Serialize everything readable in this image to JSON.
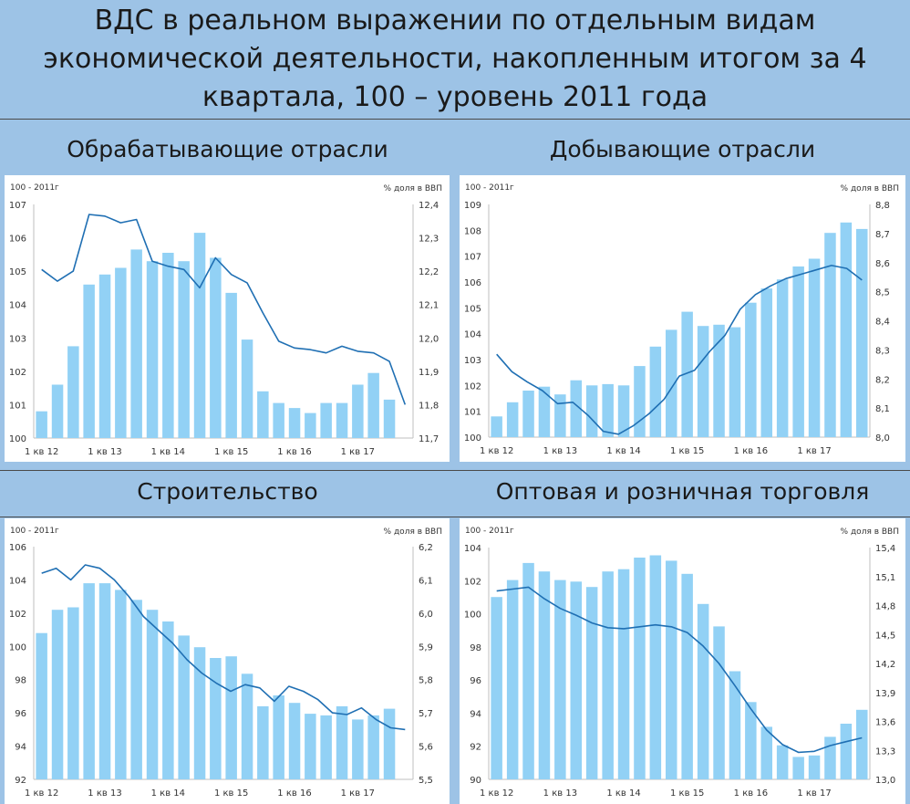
{
  "title": "ВДС в реальном выражении по отдельным видам экономической деятельности, накопленным итогом за 4 квартала, 100 – уровень 2011 года",
  "colors": {
    "bar": "#92d1f5",
    "line": "#1f6fb3",
    "background": "#9dc3e6",
    "panel": "#ffffff"
  },
  "chart_data": [
    {
      "type": "bar",
      "title": "Обрабатывающие отрасли",
      "left_axis_label": "100 - 2011г",
      "right_axis_label": "% доля в ВВП",
      "x_tick_labels": [
        "1 кв 12",
        "1 кв 13",
        "1 кв 14",
        "1 кв 15",
        "1 кв 16",
        "1 кв 17"
      ],
      "ylim": [
        100,
        107
      ],
      "y_ticks": [
        "100",
        "101",
        "102",
        "103",
        "104",
        "105",
        "106",
        "107"
      ],
      "y2lim": [
        11.7,
        12.4
      ],
      "y2_ticks": [
        "11,7",
        "11,8",
        "11,9",
        "12,0",
        "12,1",
        "12,2",
        "12,3",
        "12,4"
      ],
      "bars": [
        100.8,
        101.6,
        102.75,
        104.6,
        104.9,
        105.1,
        105.65,
        105.3,
        105.55,
        105.3,
        106.15,
        105.4,
        104.35,
        102.95,
        101.4,
        101.05,
        100.9,
        100.75,
        101.05,
        101.05,
        101.6,
        101.95,
        101.15
      ],
      "line": [
        12.205,
        12.17,
        12.2,
        12.37,
        12.365,
        12.345,
        12.355,
        12.23,
        12.215,
        12.205,
        12.15,
        12.24,
        12.19,
        12.165,
        12.075,
        11.99,
        11.97,
        11.965,
        11.955,
        11.975,
        11.96,
        11.955,
        11.93,
        11.8
      ]
    },
    {
      "type": "bar",
      "title": "Добывающие отрасли",
      "left_axis_label": "100 - 2011г",
      "right_axis_label": "% доля в ВВП",
      "x_tick_labels": [
        "1 кв 12",
        "1 кв 13",
        "1 кв 14",
        "1 кв 15",
        "1 кв 16",
        "1 кв 17"
      ],
      "ylim": [
        100,
        109
      ],
      "y_ticks": [
        "100",
        "101",
        "102",
        "103",
        "104",
        "105",
        "106",
        "107",
        "108",
        "109"
      ],
      "y2lim": [
        8.0,
        8.8
      ],
      "y2_ticks": [
        "8,0",
        "8,1",
        "8,2",
        "8,3",
        "8,4",
        "8,5",
        "8,6",
        "8,7",
        "8,8"
      ],
      "bars": [
        100.8,
        101.35,
        101.8,
        101.95,
        101.65,
        102.2,
        102.0,
        102.05,
        102.0,
        102.75,
        103.5,
        104.15,
        104.85,
        104.3,
        104.35,
        104.25,
        105.2,
        105.75,
        106.1,
        106.6,
        106.9,
        107.9,
        108.3,
        108.05
      ],
      "line": [
        8.285,
        8.225,
        8.19,
        8.16,
        8.115,
        8.12,
        8.075,
        8.02,
        8.01,
        8.04,
        8.08,
        8.13,
        8.21,
        8.23,
        8.295,
        8.35,
        8.44,
        8.49,
        8.52,
        8.545,
        8.56,
        8.575,
        8.59,
        8.58,
        8.54
      ]
    },
    {
      "type": "bar",
      "title": "Строительство",
      "left_axis_label": "100 - 2011г",
      "right_axis_label": "% доля в ВВП",
      "x_tick_labels": [
        "1 кв 12",
        "1 кв 13",
        "1 кв 14",
        "1 кв 15",
        "1 кв 16",
        "1 кв 17"
      ],
      "ylim": [
        92,
        106
      ],
      "y_ticks": [
        "92",
        "94",
        "96",
        "98",
        "100",
        "102",
        "104",
        "106"
      ],
      "y2lim": [
        5.5,
        6.2
      ],
      "y2_ticks": [
        "5,5",
        "5,6",
        "5,7",
        "5,8",
        "5,9",
        "6,0",
        "6,1",
        "6,2"
      ],
      "bars": [
        100.8,
        102.2,
        102.35,
        103.8,
        103.8,
        103.4,
        102.8,
        102.2,
        101.5,
        100.65,
        99.95,
        99.3,
        99.4,
        98.35,
        96.4,
        97.05,
        96.6,
        95.95,
        95.85,
        96.4,
        95.6,
        95.85,
        96.25
      ],
      "line": [
        6.12,
        6.135,
        6.1,
        6.145,
        6.135,
        6.1,
        6.05,
        5.99,
        5.95,
        5.91,
        5.86,
        5.82,
        5.79,
        5.765,
        5.785,
        5.775,
        5.735,
        5.78,
        5.765,
        5.74,
        5.7,
        5.695,
        5.715,
        5.68,
        5.655,
        5.65
      ]
    },
    {
      "type": "bar",
      "title": "Оптовая и розничная торговля",
      "left_axis_label": "100 - 2011г",
      "right_axis_label": "% доля в ВВП",
      "x_tick_labels": [
        "1 кв 12",
        "1 кв 13",
        "1 кв 14",
        "1 кв 15",
        "1 кв 16",
        "1 кв 17"
      ],
      "ylim": [
        90,
        105
      ],
      "y_ticks": [
        "90",
        "92",
        "94",
        "96",
        "98",
        "100",
        "102",
        "104"
      ],
      "y2lim": [
        13.0,
        15.4
      ],
      "y2_ticks": [
        "13,0",
        "13,3",
        "13,6",
        "13,9",
        "14,2",
        "14,5",
        "14,8",
        "15,1",
        "15,4"
      ],
      "bars": [
        101.8,
        102.9,
        104.0,
        103.45,
        102.9,
        102.8,
        102.45,
        103.45,
        103.6,
        104.35,
        104.5,
        104.15,
        103.3,
        101.35,
        99.9,
        97.0,
        95.0,
        93.4,
        92.2,
        91.45,
        91.55,
        92.75,
        93.6,
        94.5
      ],
      "line": [
        14.95,
        14.97,
        14.99,
        14.87,
        14.77,
        14.7,
        14.62,
        14.57,
        14.56,
        14.58,
        14.6,
        14.58,
        14.52,
        14.38,
        14.2,
        13.97,
        13.73,
        13.51,
        13.36,
        13.28,
        13.29,
        13.35,
        13.39,
        13.43
      ]
    }
  ]
}
